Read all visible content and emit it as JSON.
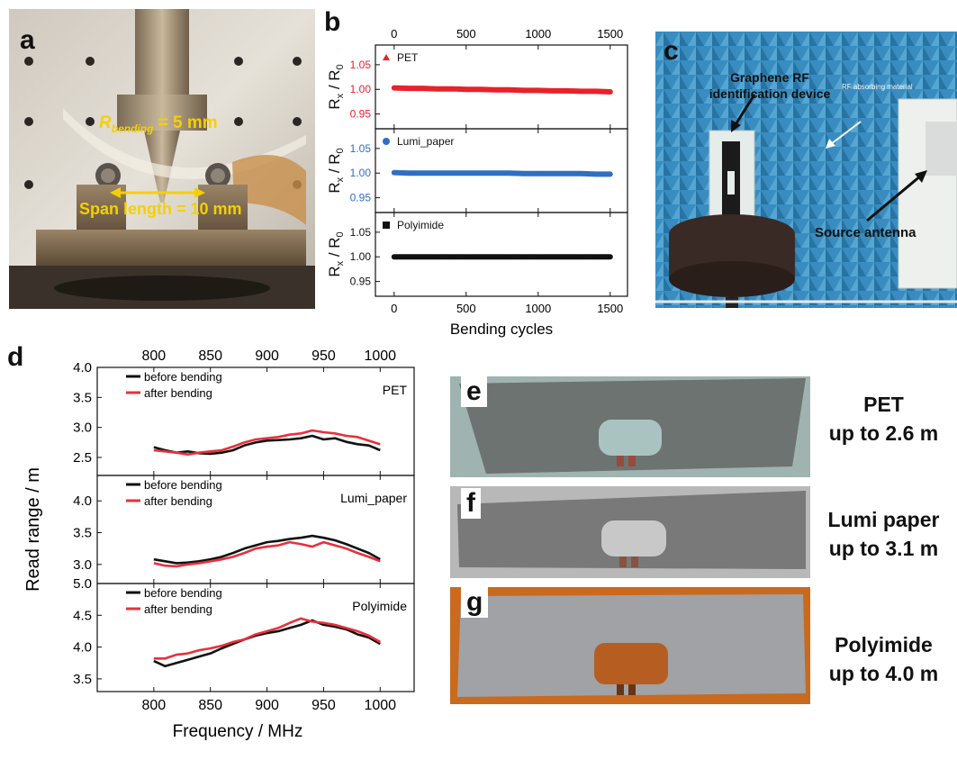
{
  "panels": {
    "a": {
      "letter": "a",
      "r_label": "R",
      "r_sub": "bending",
      "r_value": " = 5 mm",
      "span_label": "Span length = 10 mm"
    },
    "b": {
      "letter": "b"
    },
    "c": {
      "letter": "c",
      "device_label_1": "Graphene RF",
      "device_label_2": "identification device",
      "absorb_label": "RF absorbing material",
      "antenna_label": "Source antenna"
    },
    "d": {
      "letter": "d"
    },
    "e": {
      "letter": "e",
      "caption_1": "PET",
      "caption_2": "up to 2.6 m"
    },
    "f": {
      "letter": "f",
      "caption_1": "Lumi paper",
      "caption_2": "up to 3.1 m"
    },
    "g": {
      "letter": "g",
      "caption_1": "Polyimide",
      "caption_2": "up to 4.0 m"
    }
  },
  "colors": {
    "pet": "#e8212b",
    "lumi": "#2e6fc4",
    "polyimide": "#111111",
    "before": "#111111",
    "after": "#e8303a"
  },
  "chart_data": [
    {
      "type": "scatter",
      "panel": "b",
      "xlabel": "Bending cycles",
      "ylabel": "R_x / R_0",
      "xlim": [
        -130,
        1620
      ],
      "ylim": [
        0.92,
        1.09
      ],
      "xticks": [
        0,
        500,
        1000,
        1500
      ],
      "yticks": [
        0.95,
        1.0,
        1.05
      ],
      "series": [
        {
          "name": "PET",
          "x": [
            0,
            100,
            200,
            300,
            400,
            500,
            600,
            700,
            800,
            900,
            1000,
            1100,
            1200,
            1300,
            1400,
            1500
          ],
          "values": [
            1.003,
            1.002,
            1.002,
            1.001,
            1.001,
            1.0,
            1.0,
            0.999,
            0.999,
            0.998,
            0.998,
            0.997,
            0.997,
            0.996,
            0.996,
            0.995
          ]
        },
        {
          "name": "Lumi_paper",
          "x": [
            0,
            100,
            200,
            300,
            400,
            500,
            600,
            700,
            800,
            900,
            1000,
            1100,
            1200,
            1300,
            1400,
            1500
          ],
          "values": [
            1.001,
            1.0,
            1.0,
            1.0,
            1.0,
            1.0,
            1.0,
            1.0,
            1.0,
            0.999,
            0.999,
            0.999,
            0.999,
            0.999,
            0.998,
            0.998
          ]
        },
        {
          "name": "Polyimide",
          "x": [
            0,
            100,
            200,
            300,
            400,
            500,
            600,
            700,
            800,
            900,
            1000,
            1100,
            1200,
            1300,
            1400,
            1500
          ],
          "values": [
            1.0,
            1.0,
            1.0,
            1.0,
            1.0,
            1.0,
            1.0,
            1.0,
            1.0,
            1.0,
            1.0,
            1.0,
            1.0,
            1.0,
            1.0,
            1.0
          ]
        }
      ]
    },
    {
      "type": "line",
      "panel": "d",
      "xlabel": "Frequency / MHz",
      "ylabel": "Read range / m",
      "xlim": [
        750,
        1030
      ],
      "xticks": [
        800,
        850,
        900,
        950,
        1000
      ],
      "subplots": [
        {
          "label": "PET",
          "ylim": [
            2.2,
            4.0
          ],
          "yticks": [
            2.5,
            3.0,
            3.5,
            4.0
          ],
          "x": [
            800,
            810,
            820,
            830,
            840,
            850,
            860,
            870,
            880,
            890,
            900,
            910,
            920,
            930,
            940,
            950,
            960,
            970,
            980,
            990,
            1000
          ],
          "series": [
            {
              "name": "before bending",
              "values": [
                2.67,
                2.62,
                2.58,
                2.6,
                2.57,
                2.56,
                2.58,
                2.62,
                2.7,
                2.75,
                2.78,
                2.79,
                2.8,
                2.82,
                2.86,
                2.8,
                2.82,
                2.76,
                2.72,
                2.7,
                2.62
              ]
            },
            {
              "name": "after bending",
              "values": [
                2.62,
                2.6,
                2.58,
                2.55,
                2.58,
                2.6,
                2.62,
                2.68,
                2.75,
                2.8,
                2.82,
                2.84,
                2.88,
                2.9,
                2.95,
                2.92,
                2.9,
                2.86,
                2.84,
                2.78,
                2.72
              ]
            }
          ]
        },
        {
          "label": "Lumi_paper",
          "ylim": [
            2.7,
            4.4
          ],
          "yticks": [
            3.0,
            3.5,
            4.0
          ],
          "x": [
            800,
            810,
            820,
            830,
            840,
            850,
            860,
            870,
            880,
            890,
            900,
            910,
            920,
            930,
            940,
            950,
            960,
            970,
            980,
            990,
            1000
          ],
          "series": [
            {
              "name": "before bending",
              "values": [
                3.08,
                3.05,
                3.02,
                3.03,
                3.05,
                3.08,
                3.12,
                3.18,
                3.25,
                3.3,
                3.35,
                3.37,
                3.4,
                3.42,
                3.45,
                3.42,
                3.38,
                3.32,
                3.25,
                3.18,
                3.08
              ]
            },
            {
              "name": "after bending",
              "values": [
                3.02,
                2.98,
                2.97,
                3.0,
                3.02,
                3.05,
                3.08,
                3.12,
                3.18,
                3.25,
                3.28,
                3.3,
                3.35,
                3.32,
                3.28,
                3.35,
                3.3,
                3.25,
                3.18,
                3.12,
                3.05
              ]
            }
          ]
        },
        {
          "label": "Polyimide",
          "ylim": [
            3.3,
            5.0
          ],
          "yticks": [
            3.5,
            4.0,
            4.5,
            5.0
          ],
          "x": [
            800,
            810,
            820,
            830,
            840,
            850,
            860,
            870,
            880,
            890,
            900,
            910,
            920,
            930,
            940,
            950,
            960,
            970,
            980,
            990,
            1000
          ],
          "series": [
            {
              "name": "before bending",
              "values": [
                3.78,
                3.7,
                3.75,
                3.8,
                3.85,
                3.9,
                3.98,
                4.05,
                4.12,
                4.18,
                4.22,
                4.25,
                4.3,
                4.35,
                4.42,
                4.35,
                4.32,
                4.28,
                4.2,
                4.15,
                4.05
              ]
            },
            {
              "name": "after bending",
              "values": [
                3.82,
                3.82,
                3.88,
                3.9,
                3.95,
                3.98,
                4.02,
                4.08,
                4.12,
                4.2,
                4.25,
                4.3,
                4.38,
                4.45,
                4.4,
                4.38,
                4.35,
                4.3,
                4.25,
                4.18,
                4.08
              ]
            }
          ]
        }
      ]
    }
  ]
}
